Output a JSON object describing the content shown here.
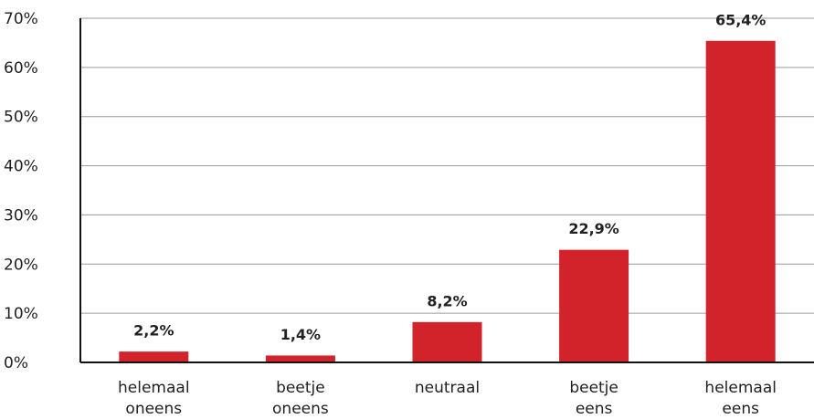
{
  "chart_data": {
    "type": "bar",
    "categories": [
      "helemaal oneens",
      "beetje oneens",
      "neutraal",
      "beetje eens",
      "helemaal eens"
    ],
    "values": [
      2.2,
      1.4,
      8.2,
      22.9,
      65.4
    ],
    "value_labels": [
      "2,2%",
      "1,4%",
      "8,2%",
      "22,9%",
      "65,4%"
    ],
    "color": "#d2232a",
    "ylim": [
      0,
      70
    ],
    "yticks": [
      {
        "value": 0,
        "label": "0%"
      },
      {
        "value": 10,
        "label": "10%"
      },
      {
        "value": 20,
        "label": "20%"
      },
      {
        "value": 30,
        "label": "30%"
      },
      {
        "value": 40,
        "label": "40%"
      },
      {
        "value": 50,
        "label": "50%"
      },
      {
        "value": 60,
        "label": "60%"
      },
      {
        "value": 70,
        "label": "70%"
      }
    ],
    "grid": true
  }
}
